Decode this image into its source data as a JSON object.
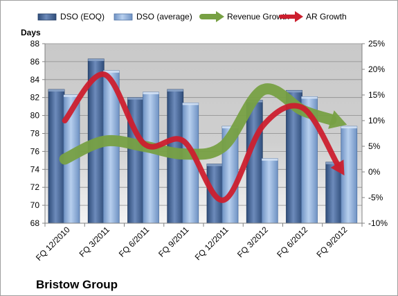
{
  "chart_data": {
    "type": "bar",
    "company": "Bristow Group",
    "categories": [
      "FQ 12/2010",
      "FQ 3/2011",
      "FQ 6/2011",
      "FQ 9/2011",
      "FQ 12/2011",
      "FQ 3/2012",
      "FQ 6/2012",
      "FQ 9/2012"
    ],
    "ylabel": "Days",
    "ylim": [
      68,
      88
    ],
    "yticks": [
      "68",
      "70",
      "72",
      "74",
      "76",
      "78",
      "80",
      "82",
      "84",
      "86",
      "88"
    ],
    "y2lim": [
      -10,
      25
    ],
    "y2ticks": [
      "-10%",
      "-5%",
      "0%",
      "5%",
      "10%",
      "15%",
      "20%",
      "25%"
    ],
    "grid": true,
    "legend_position": "top",
    "series": [
      {
        "name": "DSO (EOQ)",
        "kind": "bar",
        "axis": "left",
        "color": "#4f6e9c",
        "values": [
          82.9,
          86.3,
          82.0,
          82.9,
          74.6,
          81.7,
          82.8,
          74.8
        ]
      },
      {
        "name": "DSO (average)",
        "kind": "bar",
        "axis": "left",
        "color": "#8fb0dc",
        "values": [
          82.3,
          85.0,
          82.6,
          81.4,
          78.8,
          75.2,
          82.1,
          78.8
        ]
      },
      {
        "name": "Revenue Growth",
        "kind": "line",
        "axis": "right",
        "color": "#77a043",
        "values": [
          2.5,
          6.0,
          5.0,
          3.5,
          5.0,
          16.0,
          12.0,
          9.5
        ]
      },
      {
        "name": "AR Growth",
        "kind": "line",
        "axis": "right",
        "color": "#cc1f2e",
        "values": [
          10.0,
          19.0,
          5.5,
          6.0,
          -5.5,
          9.0,
          12.5,
          0.0
        ]
      }
    ]
  }
}
